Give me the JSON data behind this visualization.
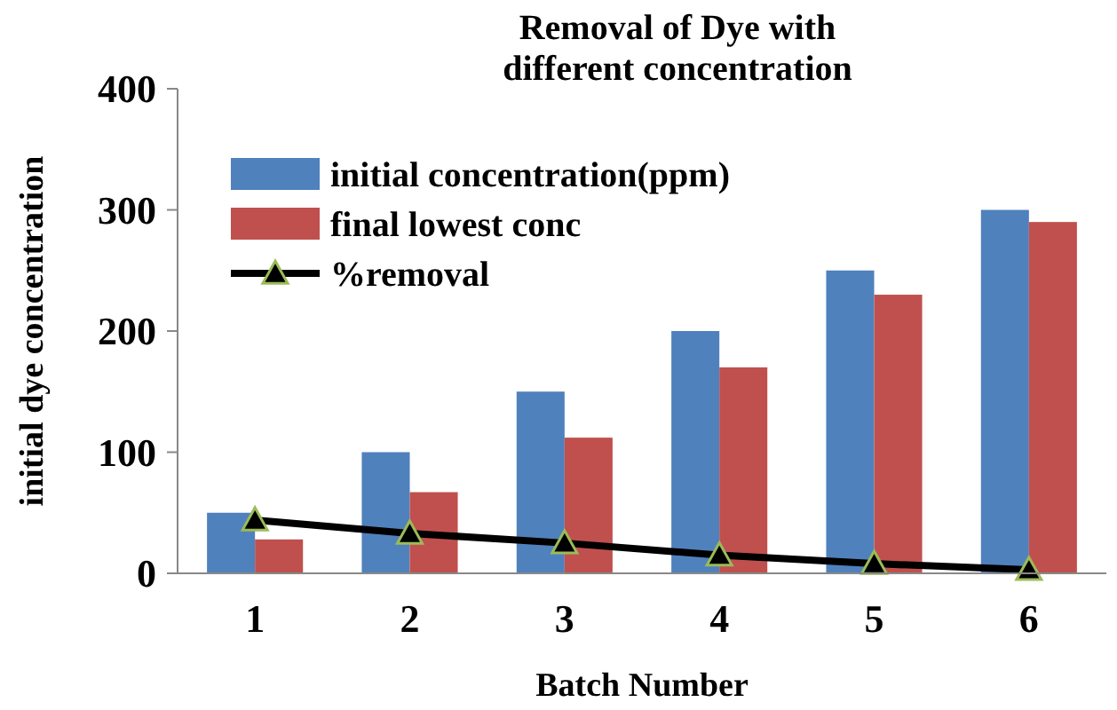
{
  "chart_data": {
    "type": "bar",
    "title": "Removal of Dye with different concentration",
    "xlabel": "Batch Number",
    "ylabel": "initial dye concentration",
    "categories": [
      "1",
      "2",
      "3",
      "4",
      "5",
      "6"
    ],
    "series": [
      {
        "name": "initial concentration(ppm)",
        "color": "#4f81bd",
        "values": [
          50,
          100,
          150,
          200,
          250,
          300
        ]
      },
      {
        "name": "final lowest conc",
        "color": "#c0504d",
        "values": [
          28,
          67,
          112,
          170,
          230,
          290
        ]
      },
      {
        "name": "%removal",
        "type": "line",
        "color": "#000000",
        "marker": "triangle",
        "values": [
          44,
          33,
          25,
          15,
          8,
          3
        ]
      }
    ],
    "ylim": [
      0,
      400
    ],
    "yticks": [
      0,
      100,
      200,
      300,
      400
    ],
    "grid": false,
    "legend": "top left"
  }
}
